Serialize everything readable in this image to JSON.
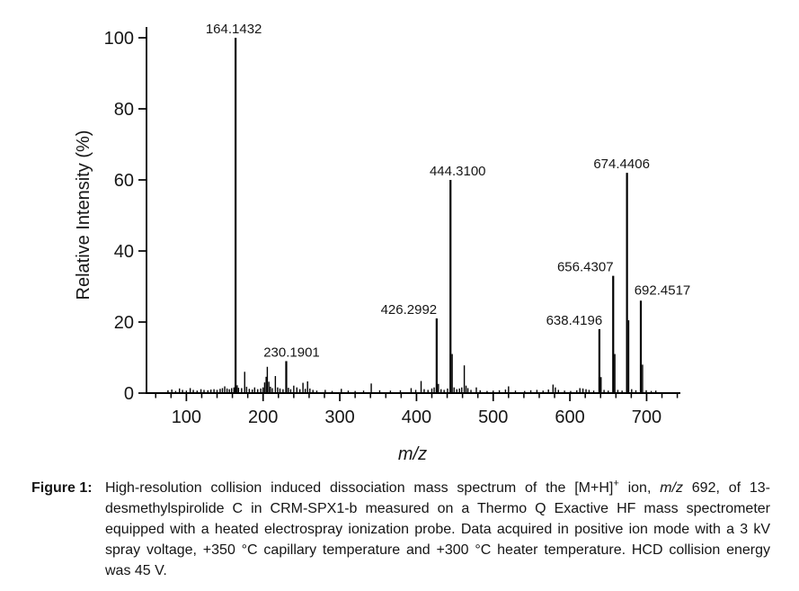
{
  "figure": {
    "label": "Figure 1:",
    "caption_segments": [
      {
        "text": "High-resolution collision induced dissociation mass spectrum of the [M+H]"
      },
      {
        "text": "+",
        "sup": true
      },
      {
        "text": " ion, "
      },
      {
        "text": "m/z",
        "italic": true
      },
      {
        "text": " 692, of 13-desmethylspirolide C in CRM-SPX1-b measured on a Thermo Q Exactive HF mass spectrometer equipped with a heated electrospray ionization probe. Data acquired in positive ion mode with a 3 kV spray voltage, +350 °C capillary temperature and +300 °C heater temperature. HCD collision energy was 45 V."
      }
    ]
  },
  "chart_data": {
    "type": "bar",
    "subtype": "mass-spectrum-sticks",
    "title": "",
    "xlabel": "m/z",
    "ylabel": "Relative Intensity (%)",
    "x_range": [
      48,
      744
    ],
    "y_range": [
      0,
      105
    ],
    "x_major_ticks": [
      100,
      200,
      300,
      400,
      500,
      600,
      700
    ],
    "x_minor_tick_step": 20,
    "y_major_ticks": [
      0,
      20,
      40,
      60,
      80,
      100
    ],
    "grid": false,
    "legend": false,
    "stick_color": "#000000",
    "labeled_peaks": [
      {
        "mz": 164.1432,
        "intensity": 100,
        "label": "164.1432",
        "label_dx": -2
      },
      {
        "mz": 230.1901,
        "intensity": 9,
        "label": "230.1901",
        "label_dx": 6
      },
      {
        "mz": 426.2992,
        "intensity": 21,
        "label": "426.2992",
        "label_dx": -31
      },
      {
        "mz": 444.31,
        "intensity": 60,
        "label": "444.3100",
        "label_dx": 8
      },
      {
        "mz": 638.4196,
        "intensity": 18,
        "label": "638.4196",
        "label_dx": -28
      },
      {
        "mz": 656.4307,
        "intensity": 33,
        "label": "656.4307",
        "label_dx": -31
      },
      {
        "mz": 674.4406,
        "intensity": 62,
        "label": "674.4406",
        "label_dx": -6
      },
      {
        "mz": 692.4517,
        "intensity": 26,
        "label": "692.4517",
        "label_dx": 24,
        "label_dy": -7
      }
    ],
    "minor_peaks": [
      [
        76,
        0.8
      ],
      [
        81,
        1.0
      ],
      [
        86,
        0.6
      ],
      [
        91,
        1.3
      ],
      [
        95,
        0.9
      ],
      [
        100,
        0.7
      ],
      [
        105,
        1.4
      ],
      [
        109,
        0.9
      ],
      [
        114,
        0.7
      ],
      [
        119,
        1.1
      ],
      [
        123,
        0.9
      ],
      [
        128,
        0.8
      ],
      [
        132,
        1.0
      ],
      [
        136,
        1.1
      ],
      [
        140,
        0.9
      ],
      [
        144,
        1.2
      ],
      [
        147,
        1.4
      ],
      [
        150,
        1.9
      ],
      [
        153,
        1.3
      ],
      [
        156,
        1.1
      ],
      [
        159,
        1.4
      ],
      [
        162,
        1.6
      ],
      [
        166.2,
        2.2
      ],
      [
        168,
        1.5
      ],
      [
        172,
        1.4
      ],
      [
        176,
        6.0
      ],
      [
        178.5,
        1.8
      ],
      [
        182,
        1.2
      ],
      [
        186,
        1.0
      ],
      [
        189,
        1.6
      ],
      [
        193,
        1.1
      ],
      [
        197,
        1.3
      ],
      [
        200,
        1.6
      ],
      [
        202,
        3.0
      ],
      [
        204,
        4.6
      ],
      [
        205.5,
        7.4
      ],
      [
        207.5,
        3.2
      ],
      [
        209.5,
        1.8
      ],
      [
        212,
        1.4
      ],
      [
        216,
        4.8
      ],
      [
        219,
        1.6
      ],
      [
        222,
        1.3
      ],
      [
        226,
        1.1
      ],
      [
        233,
        1.5
      ],
      [
        236,
        1.1
      ],
      [
        240,
        2.1
      ],
      [
        244,
        1.6
      ],
      [
        248,
        1.1
      ],
      [
        252,
        2.9
      ],
      [
        255,
        1.2
      ],
      [
        258,
        3.3
      ],
      [
        261,
        1.3
      ],
      [
        265,
        0.9
      ],
      [
        270,
        0.7
      ],
      [
        281,
        0.9
      ],
      [
        290,
        0.6
      ],
      [
        302,
        1.2
      ],
      [
        311,
        0.7
      ],
      [
        320,
        0.6
      ],
      [
        331,
        0.7
      ],
      [
        341,
        2.7
      ],
      [
        352,
        0.8
      ],
      [
        366,
        0.7
      ],
      [
        379,
        0.8
      ],
      [
        393,
        1.4
      ],
      [
        399,
        0.9
      ],
      [
        406,
        3.4
      ],
      [
        410,
        1.1
      ],
      [
        415,
        0.9
      ],
      [
        420,
        1.3
      ],
      [
        423,
        1.6
      ],
      [
        428.6,
        2.6
      ],
      [
        432,
        1.1
      ],
      [
        436,
        0.9
      ],
      [
        440.5,
        1.3
      ],
      [
        446.5,
        11.0
      ],
      [
        449,
        1.6
      ],
      [
        452.5,
        1.1
      ],
      [
        456,
        1.3
      ],
      [
        459,
        1.6
      ],
      [
        462.3,
        7.8
      ],
      [
        464.6,
        2.1
      ],
      [
        467,
        1.4
      ],
      [
        471,
        0.9
      ],
      [
        478,
        1.6
      ],
      [
        483,
        0.8
      ],
      [
        492,
        0.6
      ],
      [
        500,
        0.7
      ],
      [
        508,
        0.8
      ],
      [
        516,
        1.0
      ],
      [
        520,
        1.9
      ],
      [
        529,
        0.7
      ],
      [
        541,
        0.6
      ],
      [
        549,
        0.8
      ],
      [
        557,
        0.9
      ],
      [
        565,
        0.7
      ],
      [
        572,
        1.0
      ],
      [
        578,
        2.4
      ],
      [
        581,
        1.6
      ],
      [
        585,
        0.9
      ],
      [
        593,
        0.7
      ],
      [
        601,
        0.6
      ],
      [
        609,
        0.8
      ],
      [
        613,
        1.4
      ],
      [
        617,
        1.3
      ],
      [
        621,
        1.1
      ],
      [
        625,
        0.9
      ],
      [
        631,
        0.7
      ],
      [
        640.6,
        4.5
      ],
      [
        644.5,
        0.9
      ],
      [
        650,
        0.7
      ],
      [
        658.6,
        11.0
      ],
      [
        662.5,
        0.9
      ],
      [
        668,
        0.7
      ],
      [
        676.6,
        20.5
      ],
      [
        680.5,
        1.1
      ],
      [
        686,
        0.8
      ],
      [
        694.7,
        8.0
      ],
      [
        699.5,
        0.8
      ],
      [
        706,
        0.6
      ],
      [
        712,
        0.7
      ]
    ]
  }
}
